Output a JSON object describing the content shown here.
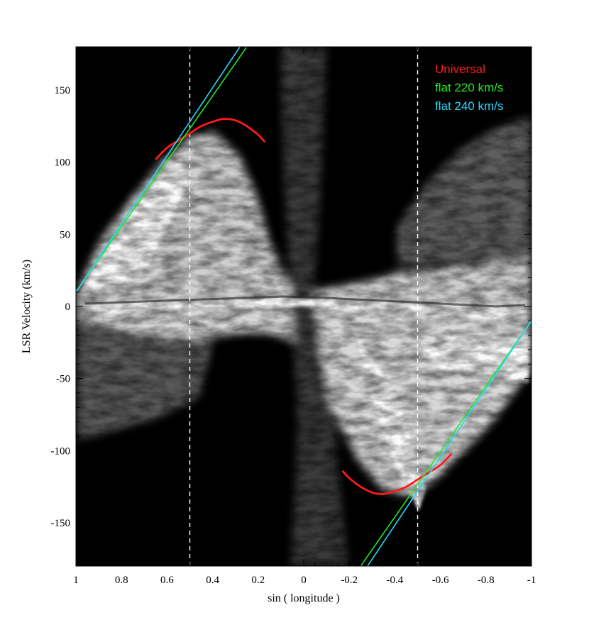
{
  "chart_data": {
    "type": "line",
    "title": "",
    "xlabel": "sin ( longitude )",
    "ylabel": "LSR Velocity (km/s)",
    "xlim": [
      1,
      -1
    ],
    "ylim": [
      -180,
      180
    ],
    "x_reversed": true,
    "x_ticks": [
      1,
      0.8,
      0.6,
      0.4,
      0.2,
      0,
      -0.2,
      -0.4,
      -0.6,
      -0.8,
      -1
    ],
    "x_tick_labels": [
      "1",
      "0.8",
      "0.6",
      "0.4",
      "0.2",
      "0",
      "-0.2",
      "-0.4",
      "-0.6",
      "-0.8",
      "-1"
    ],
    "y_ticks": [
      150,
      100,
      50,
      0,
      -50,
      -100,
      -150
    ],
    "y_tick_labels": [
      "150",
      "100",
      "50",
      "0",
      "-50",
      "-100",
      "-150"
    ],
    "background": "grayscale longitude-velocity intensity map",
    "reference_lines": [
      {
        "orientation": "vertical",
        "x": 0.5,
        "style": "dashed",
        "color": "#ffffff"
      },
      {
        "orientation": "vertical",
        "x": -0.5,
        "style": "dashed",
        "color": "#ffffff"
      }
    ],
    "legend": {
      "placement": "top-right"
    },
    "series": [
      {
        "name": "Universal",
        "color": "#ff1a1a",
        "segments": [
          {
            "x": [
              0.65,
              0.6,
              0.55,
              0.5,
              0.45,
              0.4,
              0.35,
              0.3,
              0.25,
              0.2,
              0.17
            ],
            "y": [
              102,
              110,
              115,
              120,
              125,
              128,
              130,
              129,
              125,
              119,
              114
            ]
          },
          {
            "x": [
              -0.17,
              -0.2,
              -0.25,
              -0.3,
              -0.35,
              -0.4,
              -0.45,
              -0.5,
              -0.55,
              -0.6,
              -0.65
            ],
            "y": [
              -114,
              -119,
              -125,
              -129,
              -130,
              -128,
              -125,
              -120,
              -115,
              -110,
              -102
            ]
          }
        ]
      },
      {
        "name": "flat 220 km/s",
        "color": "#22e822",
        "segments": [
          {
            "x": [
              1.0,
              0.25
            ],
            "y": [
              10,
              180
            ]
          },
          {
            "x": [
              -0.25,
              -1.0
            ],
            "y": [
              -180,
              -10
            ]
          }
        ]
      },
      {
        "name": "flat 240 km/s",
        "color": "#22d8ff",
        "segments": [
          {
            "x": [
              1.0,
              0.28
            ],
            "y": [
              10,
              180
            ]
          },
          {
            "x": [
              -0.28,
              -1.0
            ],
            "y": [
              -180,
              -10
            ]
          }
        ]
      }
    ]
  }
}
